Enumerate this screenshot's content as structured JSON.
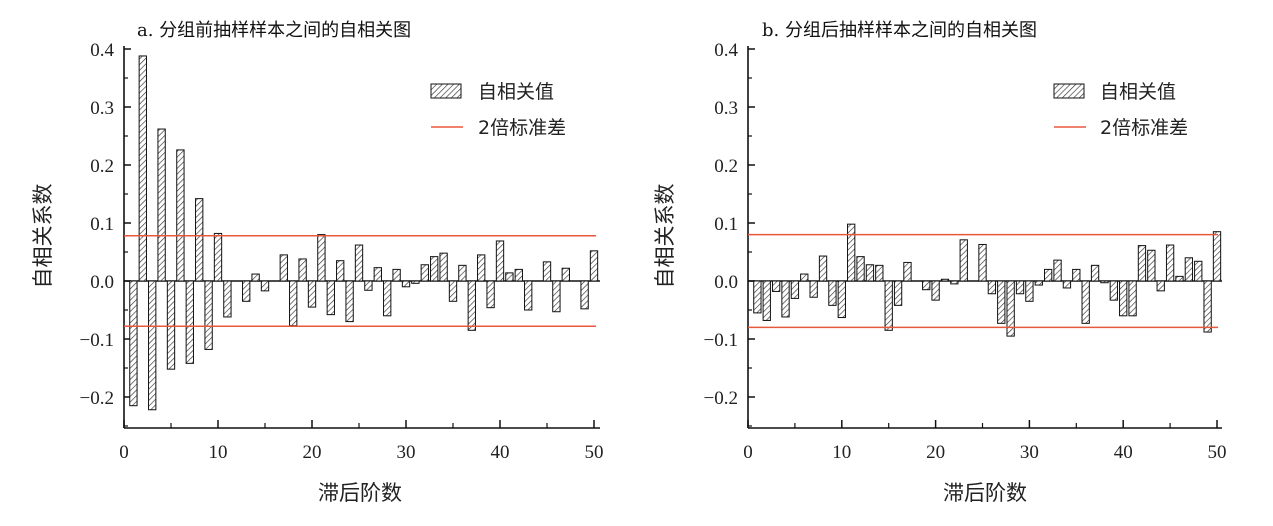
{
  "chart_data": [
    {
      "type": "bar",
      "title": "a. 分组前抽样样本之间的自相关图",
      "xlabel": "滞后阶数",
      "ylabel": "自相关系数",
      "xlim": [
        0,
        50
      ],
      "ylim": [
        -0.25,
        0.42
      ],
      "x_ticks": [
        "0",
        "10",
        "20",
        "30",
        "40",
        "50"
      ],
      "y_ticks": [
        "0.4",
        "0.3",
        "0.2",
        "0.1",
        "0.0",
        "−0.1",
        "−0.2"
      ],
      "x_tick_values": [
        0,
        10,
        20,
        30,
        40,
        50
      ],
      "y_tick_values": [
        0.4,
        0.3,
        0.2,
        0.1,
        0.0,
        -0.1,
        -0.2
      ],
      "legend_position": "top-right",
      "series": [
        {
          "name": "自相关值",
          "pattern": "hatched",
          "x": [
            1,
            2,
            3,
            4,
            5,
            6,
            7,
            8,
            9,
            10,
            11,
            12,
            13,
            14,
            15,
            16,
            17,
            18,
            19,
            20,
            21,
            22,
            23,
            24,
            25,
            26,
            27,
            28,
            29,
            30,
            31,
            32,
            33,
            34,
            35,
            36,
            37,
            38,
            39,
            40,
            41,
            42,
            43,
            44,
            45,
            46,
            47,
            48,
            49,
            50
          ],
          "values": [
            -0.215,
            0.388,
            -0.222,
            0.262,
            -0.152,
            0.226,
            -0.142,
            0.142,
            -0.118,
            0.082,
            -0.062,
            0.0,
            -0.035,
            0.012,
            -0.017,
            0.0,
            0.045,
            -0.077,
            0.038,
            -0.045,
            0.08,
            -0.058,
            0.035,
            -0.07,
            0.062,
            -0.016,
            0.023,
            -0.06,
            0.02,
            -0.01,
            -0.004,
            0.028,
            0.042,
            0.048,
            -0.035,
            0.027,
            -0.085,
            0.045,
            -0.046,
            0.069,
            0.014,
            0.02,
            -0.05,
            0.0,
            0.033,
            -0.053,
            0.022,
            0.0,
            -0.048,
            0.052
          ]
        },
        {
          "name": "2倍标准差",
          "type": "line",
          "color": "#e8583d",
          "values": [
            0.078,
            -0.078
          ]
        }
      ]
    },
    {
      "type": "bar",
      "title": "b. 分组后抽样样本之间的自相关图",
      "xlabel": "滞后阶数",
      "ylabel": "自相关系数",
      "xlim": [
        0,
        50
      ],
      "ylim": [
        -0.25,
        0.42
      ],
      "x_ticks": [
        "0",
        "10",
        "20",
        "30",
        "40",
        "50"
      ],
      "y_ticks": [
        "0.4",
        "0.3",
        "0.2",
        "0.1",
        "0.0",
        "−0.1",
        "−0.2"
      ],
      "x_tick_values": [
        0,
        10,
        20,
        30,
        40,
        50
      ],
      "y_tick_values": [
        0.4,
        0.3,
        0.2,
        0.1,
        0.0,
        -0.1,
        -0.2
      ],
      "legend_position": "top-right",
      "series": [
        {
          "name": "自相关值",
          "pattern": "hatched",
          "x": [
            1,
            2,
            3,
            4,
            5,
            6,
            7,
            8,
            9,
            10,
            11,
            12,
            13,
            14,
            15,
            16,
            17,
            18,
            19,
            20,
            21,
            22,
            23,
            24,
            25,
            26,
            27,
            28,
            29,
            30,
            31,
            32,
            33,
            34,
            35,
            36,
            37,
            38,
            39,
            40,
            41,
            42,
            43,
            44,
            45,
            46,
            47,
            48,
            49,
            50
          ],
          "values": [
            -0.055,
            -0.068,
            -0.018,
            -0.062,
            -0.03,
            0.012,
            -0.028,
            0.043,
            -0.042,
            -0.063,
            0.098,
            0.042,
            0.028,
            0.027,
            -0.085,
            -0.042,
            0.032,
            0.0,
            -0.015,
            -0.033,
            0.003,
            -0.005,
            0.071,
            0.0,
            0.063,
            -0.022,
            -0.073,
            -0.095,
            -0.022,
            -0.035,
            -0.007,
            0.02,
            0.036,
            -0.012,
            0.02,
            -0.073,
            0.027,
            -0.003,
            -0.033,
            -0.06,
            -0.06,
            0.061,
            0.053,
            -0.017,
            0.062,
            0.008,
            0.04,
            0.034,
            -0.088,
            0.085
          ]
        },
        {
          "name": "2倍标准差",
          "type": "line",
          "color": "#e8583d",
          "values": [
            0.08,
            -0.08
          ]
        }
      ]
    }
  ]
}
